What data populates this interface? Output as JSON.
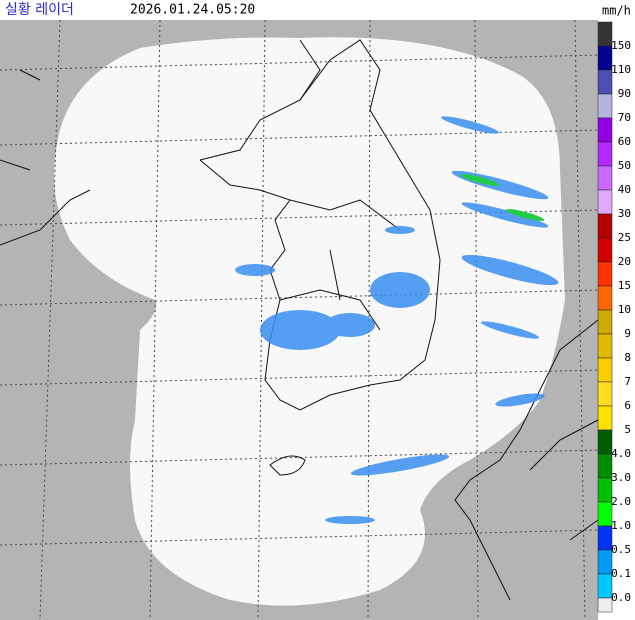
{
  "header": {
    "title": "실황 레이더",
    "time": "2026.01.24.05:20",
    "unit": "mm/h"
  },
  "legend": {
    "labels": [
      "150",
      "110",
      "90",
      "70",
      "60",
      "50",
      "40",
      "30",
      "25",
      "20",
      "15",
      "10",
      "9",
      "8",
      "7",
      "6",
      "5",
      "4.0",
      "3.0",
      "2.0",
      "1.0",
      "0.5",
      "0.1",
      "0.0"
    ],
    "colors": [
      "#333333",
      "#000390",
      "#4c4eb1",
      "#b3b4de",
      "#9300e4",
      "#b329ff",
      "#c969ff",
      "#e0a9ff",
      "#b40000",
      "#d20000",
      "#ff3300",
      "#ff6600",
      "#ccaa00",
      "#e0b900",
      "#f9cd00",
      "#ffdc1f",
      "#ffe100",
      "#005a00",
      "#008c00",
      "#00be00",
      "#00ff00",
      "#0033f5",
      "#009bf5",
      "#00c8ff",
      "#eeeeee"
    ]
  }
}
